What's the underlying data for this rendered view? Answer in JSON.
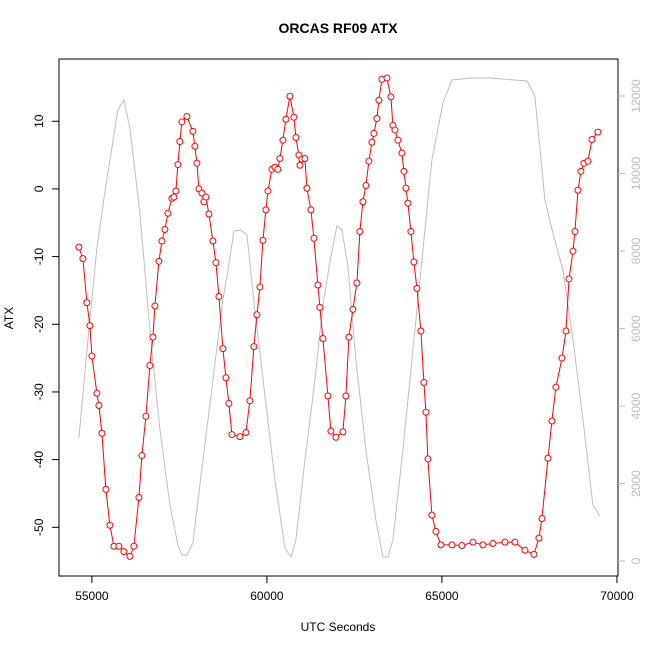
{
  "chart_data": {
    "type": "line",
    "title": "ORCAS RF09 ATX",
    "x_label": "UTC Seconds",
    "y_label": "ATX",
    "xlim": [
      54060,
      70030
    ],
    "xticks": [
      55000,
      60000,
      65000,
      70000
    ],
    "ylim": [
      -57.2,
      19.2
    ],
    "yticks": [
      -50,
      -40,
      -30,
      -20,
      -10,
      0,
      10
    ],
    "y2lim": [
      -387,
      12955
    ],
    "y2ticks": [
      0,
      2000,
      4000,
      6000,
      8000,
      10000,
      12000
    ],
    "series": [
      {
        "color": "#bebebe",
        "axis": "y2",
        "markers": false,
        "x": [
          54629,
          54886,
          55143,
          55400,
          55743,
          55914,
          56086,
          56371,
          56657,
          56943,
          57229,
          57457,
          57571,
          57714,
          57886,
          58171,
          58457,
          58743,
          58943,
          59057,
          59257,
          59429,
          59657,
          59943,
          60229,
          60514,
          60686,
          60829,
          61086,
          61371,
          61600,
          61800,
          62000,
          62143,
          62314,
          62543,
          62829,
          63114,
          63314,
          63457,
          63600,
          63886,
          64171,
          64457,
          64714,
          65029,
          65286,
          65800,
          66371,
          67429,
          67657,
          67943,
          68171,
          68457,
          68743,
          69029,
          69314,
          69514
        ],
        "values": [
          3174,
          5703,
          8077,
          9703,
          11639,
          11897,
          11174,
          8987,
          5961,
          3406,
          1445,
          413,
          155,
          155,
          465,
          2606,
          4671,
          6735,
          7819,
          8516,
          8542,
          8413,
          6477,
          4284,
          2090,
          335,
          103,
          542,
          2606,
          4671,
          6606,
          7716,
          8645,
          8542,
          7613,
          5187,
          2865,
          1058,
          103,
          103,
          542,
          2865,
          5445,
          8026,
          10348,
          11819,
          12413,
          12465,
          12465,
          12387,
          12000,
          9316,
          8465,
          7510,
          5703,
          3639,
          1445,
          1161
        ]
      },
      {
        "color": "#ff0000",
        "markers": true,
        "x": [
          54629,
          54743,
          54857,
          54943,
          55000,
          55143,
          55200,
          55286,
          55400,
          55514,
          55629,
          55771,
          55914,
          56086,
          56200,
          56343,
          56429,
          56543,
          56657,
          56743,
          56800,
          56914,
          57000,
          57086,
          57171,
          57286,
          57343,
          57400,
          57457,
          57514,
          57571,
          57714,
          57886,
          57943,
          58000,
          58057,
          58143,
          58200,
          58257,
          58343,
          58457,
          58543,
          58629,
          58743,
          58829,
          58914,
          59000,
          59229,
          59400,
          59514,
          59629,
          59714,
          59800,
          59886,
          59971,
          60029,
          60143,
          60229,
          60314,
          60371,
          60457,
          60543,
          60657,
          60771,
          60829,
          60914,
          60943,
          61000,
          61086,
          61143,
          61257,
          61343,
          61457,
          61514,
          61600,
          61743,
          61829,
          61971,
          62171,
          62257,
          62343,
          62457,
          62571,
          62657,
          62743,
          62829,
          62914,
          63000,
          63057,
          63143,
          63200,
          63286,
          63429,
          63543,
          63600,
          63657,
          63743,
          63857,
          63914,
          63971,
          64029,
          64114,
          64200,
          64286,
          64400,
          64486,
          64543,
          64600,
          64714,
          64829,
          64971,
          65286,
          65571,
          65886,
          66171,
          66457,
          66800,
          67086,
          67371,
          67629,
          67771,
          67857,
          68029,
          68143,
          68257,
          68429,
          68543,
          68629,
          68743,
          68800,
          68886,
          68971,
          69057,
          69171,
          69286,
          69457
        ],
        "values": [
          -8.6,
          -10.3,
          -16.8,
          -20.2,
          -24.7,
          -30.2,
          -32.0,
          -36.1,
          -44.4,
          -49.7,
          -52.8,
          -52.8,
          -53.6,
          -54.3,
          -52.8,
          -45.6,
          -39.4,
          -33.6,
          -26.1,
          -21.9,
          -17.3,
          -10.7,
          -7.7,
          -6.0,
          -3.6,
          -1.4,
          -1.2,
          -0.3,
          3.6,
          7.0,
          9.9,
          10.7,
          8.5,
          6.3,
          3.8,
          0,
          -0.6,
          -1.9,
          -1.2,
          -3.7,
          -7.7,
          -10.9,
          -15.9,
          -23.6,
          -27.9,
          -31.7,
          -36.3,
          -36.6,
          -36.0,
          -31.3,
          -23.3,
          -18.6,
          -14.5,
          -7.6,
          -3.1,
          -0.3,
          2.9,
          3.2,
          2.9,
          4.5,
          7.2,
          10.3,
          13.7,
          10.6,
          7.6,
          5.0,
          3.5,
          4.4,
          4.5,
          0.1,
          -3.1,
          -7.3,
          -14.2,
          -17.5,
          -22.1,
          -30.6,
          -35.8,
          -36.7,
          -35.9,
          -30.6,
          -21.9,
          -17.8,
          -13.9,
          -6.3,
          -1.9,
          0.5,
          4.1,
          6.9,
          8.2,
          10.4,
          13.1,
          16.2,
          16.4,
          13.6,
          9.4,
          8.7,
          7.2,
          5.3,
          2.6,
          0.1,
          -2.1,
          -6.3,
          -10.8,
          -14.7,
          -21.0,
          -28.6,
          -33.0,
          -39.9,
          -48.2,
          -50.6,
          -52.6,
          -52.6,
          -52.7,
          -52.2,
          -52.6,
          -52.4,
          -52.2,
          -52.2,
          -53.4,
          -54.0,
          -51.6,
          -48.7,
          -39.8,
          -34.3,
          -29.3,
          -25.0,
          -21.0,
          -13.3,
          -9.2,
          -6.3,
          -0.2,
          2.6,
          3.8,
          4.1,
          7.3,
          8.4
        ]
      }
    ]
  }
}
